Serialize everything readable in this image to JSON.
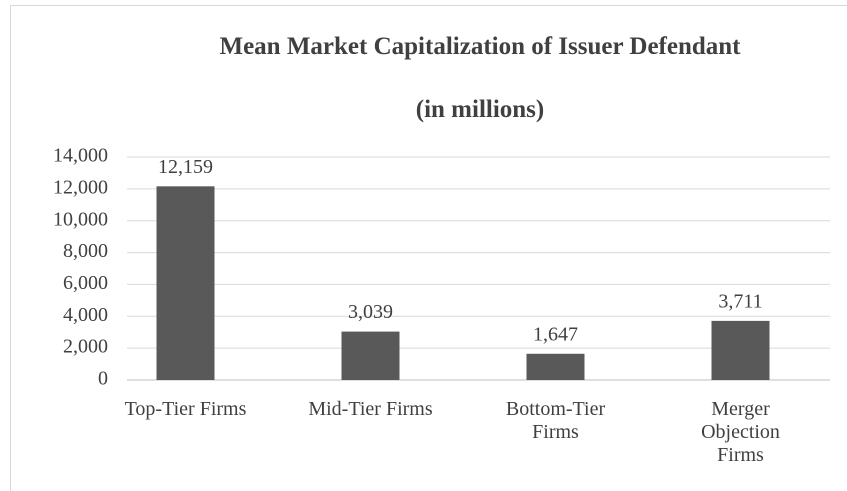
{
  "chart_data": {
    "type": "bar",
    "title": "Mean Market Capitalization of Issuer Defendant",
    "subtitle": "(in millions)",
    "categories": [
      "Top-Tier Firms",
      "Mid-Tier Firms",
      "Bottom-Tier Firms",
      "Merger Objection Firms"
    ],
    "values": [
      12159,
      3039,
      1647,
      3711
    ],
    "value_labels": [
      "12,159",
      "3,039",
      "1,647",
      "3,711"
    ],
    "color": "#595959",
    "ylim": [
      0,
      14000
    ],
    "yticks": [
      0,
      {
        "value": 2000,
        "label": "2,000"
      },
      {
        "value": 4000,
        "label": "4,000"
      },
      {
        "value": 6000,
        "label": "6,000"
      },
      {
        "value": 8000,
        "label": "8,000"
      },
      {
        "value": 10000,
        "label": "10,000"
      },
      {
        "value": 12000,
        "label": "12,000"
      },
      {
        "value": 14000,
        "label": "14,000"
      }
    ],
    "grid": true
  }
}
